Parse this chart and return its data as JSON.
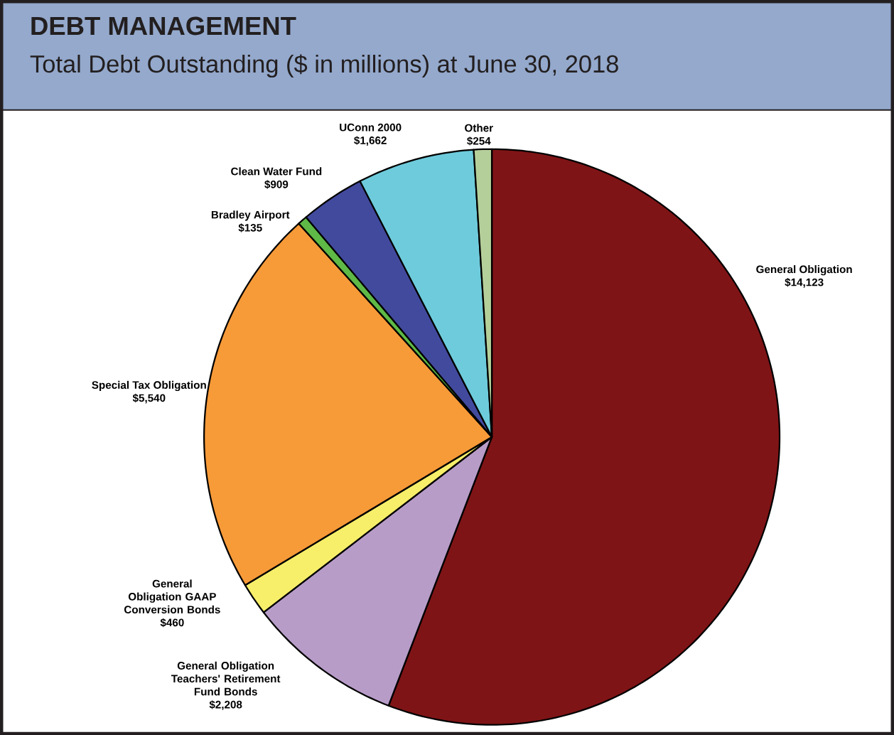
{
  "chart_data": {
    "type": "pie",
    "title": "DEBT MANAGEMENT",
    "subtitle": "Total Debt Outstanding ($ in millions) at June 30, 2018",
    "categories": [
      "General Obligation",
      "General Obligation Teachers' Retirement Fund Bonds",
      "General Obligation GAAP Conversion Bonds",
      "Special Tax Obligation",
      "Bradley Airport",
      "Clean Water Fund",
      "UConn 2000",
      "Other"
    ],
    "values": [
      14123,
      2208,
      460,
      5540,
      135,
      909,
      1662,
      254
    ],
    "value_labels": [
      "$14,123",
      "$2,208",
      "$460",
      "$5,540",
      "$135",
      "$909",
      "$1,662",
      "$254"
    ],
    "colors": [
      "#7f1416",
      "#b89cc8",
      "#f7ee6a",
      "#f79a38",
      "#5fb946",
      "#424a9e",
      "#6ecbdb",
      "#b5cf9a"
    ]
  }
}
